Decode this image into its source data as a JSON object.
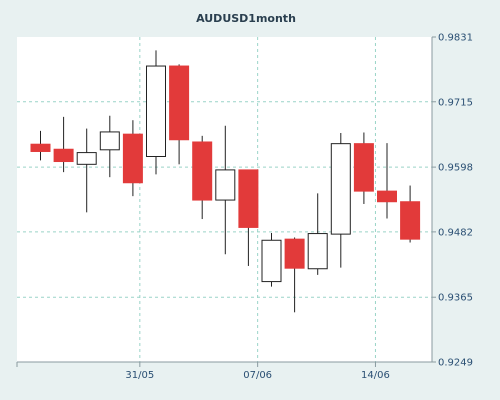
{
  "chart_data": {
    "type": "candlestick",
    "title": "AUDUSD1month",
    "y_ticks": [
      "0.9831",
      "0.9715",
      "0.9598",
      "0.9482",
      "0.9365",
      "0.9249"
    ],
    "ylim": [
      0.9249,
      0.9831
    ],
    "x_ticks": [
      {
        "label": "31/05",
        "index": 4.3
      },
      {
        "label": "07/06",
        "index": 9.4
      },
      {
        "label": "14/06",
        "index": 14.5
      }
    ],
    "grid": true,
    "colors": {
      "up": "#ffffff",
      "down": "#e23a3a",
      "grid": "#9ad4c8",
      "background": "#ffffff"
    },
    "candles": [
      {
        "open": 0.9639,
        "high": 0.9663,
        "low": 0.961,
        "close": 0.9626
      },
      {
        "open": 0.963,
        "high": 0.9688,
        "low": 0.9589,
        "close": 0.9608
      },
      {
        "open": 0.9603,
        "high": 0.9667,
        "low": 0.9517,
        "close": 0.9624
      },
      {
        "open": 0.9629,
        "high": 0.969,
        "low": 0.958,
        "close": 0.9661
      },
      {
        "open": 0.9657,
        "high": 0.9682,
        "low": 0.9546,
        "close": 0.957
      },
      {
        "open": 0.9617,
        "high": 0.9807,
        "low": 0.9585,
        "close": 0.9779
      },
      {
        "open": 0.9779,
        "high": 0.9782,
        "low": 0.9603,
        "close": 0.9647
      },
      {
        "open": 0.9643,
        "high": 0.9654,
        "low": 0.9505,
        "close": 0.9539
      },
      {
        "open": 0.9539,
        "high": 0.9672,
        "low": 0.9442,
        "close": 0.9593
      },
      {
        "open": 0.9593,
        "high": 0.9593,
        "low": 0.9421,
        "close": 0.949
      },
      {
        "open": 0.9393,
        "high": 0.948,
        "low": 0.9384,
        "close": 0.9467
      },
      {
        "open": 0.9469,
        "high": 0.9472,
        "low": 0.9338,
        "close": 0.9417
      },
      {
        "open": 0.9416,
        "high": 0.9551,
        "low": 0.9405,
        "close": 0.9479
      },
      {
        "open": 0.9478,
        "high": 0.9659,
        "low": 0.9418,
        "close": 0.964
      },
      {
        "open": 0.964,
        "high": 0.966,
        "low": 0.9532,
        "close": 0.9555
      },
      {
        "open": 0.9555,
        "high": 0.9641,
        "low": 0.9506,
        "close": 0.9536
      },
      {
        "open": 0.9536,
        "high": 0.9565,
        "low": 0.9463,
        "close": 0.9469
      }
    ]
  }
}
